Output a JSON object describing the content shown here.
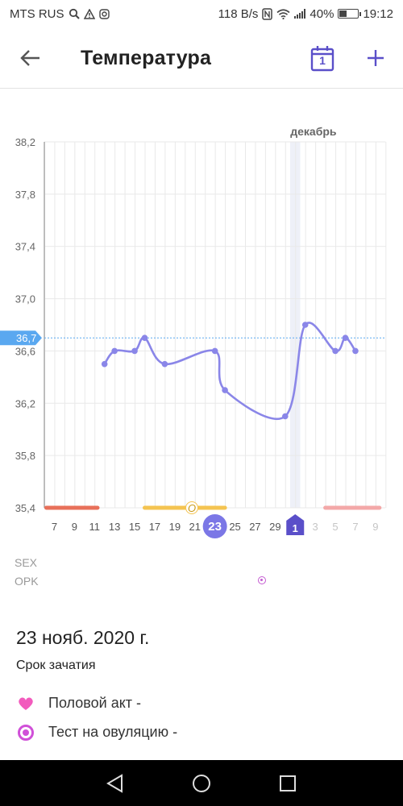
{
  "status_bar": {
    "carrier": "MTS RUS",
    "speed": "118 B/s",
    "battery": "40%",
    "battery_level": 0.4,
    "time": "19:12"
  },
  "header": {
    "title": "Температура",
    "calendar_day": "1"
  },
  "chart_data": {
    "type": "line",
    "y_ticks": [
      "38,2",
      "37,8",
      "37,4",
      "37,0",
      "36,6",
      "36,2",
      "35,8",
      "35,4"
    ],
    "ylim": [
      35.4,
      38.2
    ],
    "current_value_label": "36,7",
    "current_value": 36.7,
    "month_label": "декабрь",
    "x_labels": [
      "7",
      "9",
      "11",
      "13",
      "15",
      "17",
      "19",
      "21",
      "23",
      "25",
      "27",
      "29",
      "1",
      "3",
      "5",
      "7",
      "9"
    ],
    "highlighted_x": "23",
    "month_start_x": "1",
    "ovulation_marker": "O",
    "series": [
      {
        "values": [
          {
            "day": 6,
            "t": 36.5
          },
          {
            "day": 7,
            "t": 36.6
          },
          {
            "day": 9,
            "t": 36.6
          },
          {
            "day": 10,
            "t": 36.7
          },
          {
            "day": 12,
            "t": 36.5
          },
          {
            "day": 17,
            "t": 36.6
          },
          {
            "day": 18,
            "t": 36.3
          },
          {
            "day": 24,
            "t": 36.1
          },
          {
            "day": 26,
            "t": 36.8
          },
          {
            "day": 29,
            "t": 36.6
          },
          {
            "day": 30,
            "t": 36.7
          },
          {
            "day": 31,
            "t": 36.6
          }
        ]
      }
    ],
    "colors": {
      "line": "#8a86e8",
      "grid": "#e9e9e9",
      "period": "#e8705a",
      "fertile": "#f4c451",
      "next_period": "#f3a8a8",
      "highlight": "#7b77e6",
      "month_badge": "#5a4fc9",
      "current_badge": "#5aa8f0"
    }
  },
  "rows": {
    "sex_label": "SEX",
    "opk_label": "OPK"
  },
  "details": {
    "date": "23 нояб. 2020 г.",
    "phase": "Срок зачатия",
    "items": [
      {
        "icon": "heart-icon",
        "label": "Половой акт -"
      },
      {
        "icon": "ovulation-test-icon",
        "label": "Тест на овуляцию -"
      }
    ]
  }
}
